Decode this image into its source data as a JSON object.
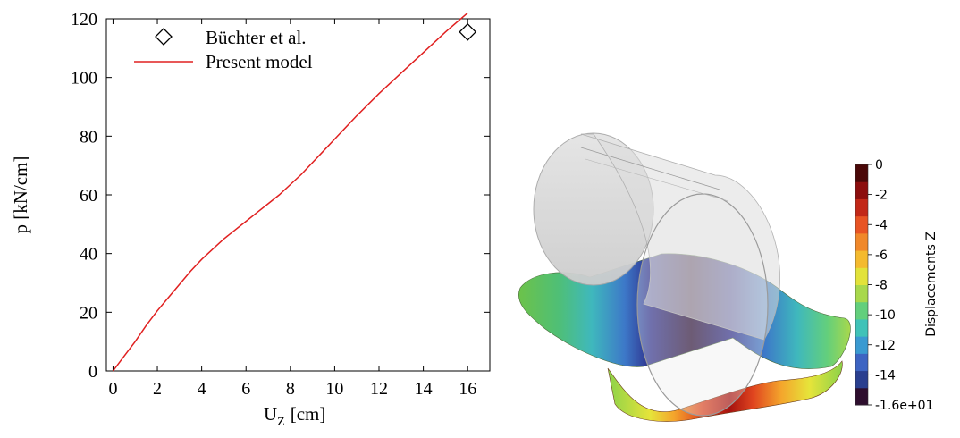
{
  "chart_data": [
    {
      "type": "line",
      "xlabel_main": "U",
      "xlabel_sub": "Z",
      "xlabel_unit": "[cm]",
      "ylabel": "p [kN/cm]",
      "xlim": [
        -0.3,
        17
      ],
      "ylim": [
        0,
        120
      ],
      "x_ticks": [
        0,
        2,
        4,
        6,
        8,
        10,
        12,
        14,
        16
      ],
      "y_ticks": [
        0,
        20,
        40,
        60,
        80,
        100,
        120
      ],
      "grid": false,
      "legend_position": "top-left",
      "series": [
        {
          "name": "Büchter et al.",
          "marker": "diamond",
          "x": [
            16.0
          ],
          "y": [
            115.5
          ]
        },
        {
          "name": "Present model",
          "color": "#e02020",
          "x": [
            0,
            0.5,
            1,
            1.5,
            2,
            2.5,
            3,
            3.5,
            4,
            4.5,
            5,
            5.5,
            6,
            6.5,
            7,
            7.5,
            8,
            8.5,
            9,
            9.5,
            10,
            11,
            12,
            13,
            14,
            15,
            16
          ],
          "y": [
            0,
            5,
            10,
            15.5,
            20.5,
            25,
            29.5,
            34,
            38,
            41.5,
            45,
            48,
            51,
            54,
            57,
            60,
            63.5,
            67,
            71,
            75,
            79,
            87,
            94.5,
            101.5,
            108.5,
            115.5,
            122
          ]
        }
      ]
    },
    {
      "type": "heatmap",
      "colorbar_title": "Displacements Z",
      "colorbar_range": [
        -16,
        0
      ],
      "colorbar_labels": [
        "0",
        "-2",
        "-4",
        "-6",
        "-8",
        "-10",
        "-12",
        "-14",
        "-1.6e+01"
      ],
      "colorbar_label_values": [
        0,
        -2,
        -4,
        -6,
        -8,
        -10,
        -12,
        -14,
        -16
      ],
      "colormap": [
        "#2e0e2e",
        "#2a3f8f",
        "#3d64c2",
        "#3a9ad1",
        "#3fc2b8",
        "#63cf7c",
        "#a8d84c",
        "#e2e23a",
        "#f4ba2f",
        "#f0882a",
        "#e85424",
        "#c22818",
        "#8c0e0e",
        "#4a0808"
      ]
    }
  ]
}
